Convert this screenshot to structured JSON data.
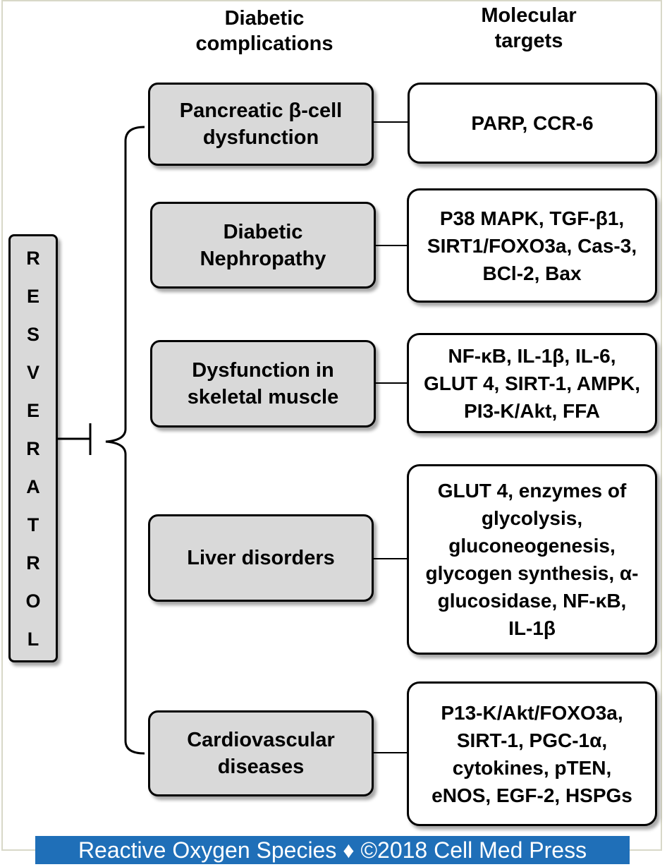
{
  "headers": {
    "complications": [
      "Diabetic",
      "complications"
    ],
    "targets": [
      "Molecular",
      "targets"
    ]
  },
  "resveratrol": [
    "R",
    "E",
    "S",
    "V",
    "E",
    "R",
    "A",
    "T",
    "R",
    "O",
    "L"
  ],
  "rows": [
    {
      "complication": [
        "Pancreatic β-cell",
        "dysfunction"
      ],
      "targets": [
        "PARP, CCR-6"
      ]
    },
    {
      "complication": [
        "Diabetic",
        "Nephropathy"
      ],
      "targets": [
        "P38 MAPK, TGF-β1,",
        "SIRT1/FOXO3a, Cas-3,",
        "BCl-2, Bax"
      ]
    },
    {
      "complication": [
        "Dysfunction in",
        "skeletal muscle"
      ],
      "targets": [
        "NF-κB, IL-1β, IL-6,",
        "GLUT 4, SIRT-1, AMPK,",
        "PI3-K/Akt, FFA"
      ]
    },
    {
      "complication": [
        "Liver disorders"
      ],
      "targets": [
        "GLUT 4, enzymes of",
        "glycolysis,",
        "gluconeogenesis,",
        "glycogen synthesis, α-",
        "glucosidase, NF-κB,",
        "IL-1β"
      ]
    },
    {
      "complication": [
        "Cardiovascular",
        "diseases"
      ],
      "targets": [
        "P13-K/Akt/FOXO3a,",
        "SIRT-1, PGC-1α,",
        "cytokines, pTEN,",
        "eNOS, EGF-2, HSPGs"
      ]
    }
  ],
  "footer": "Reactive Oxygen Species ♦ ©2018 Cell Med Press"
}
